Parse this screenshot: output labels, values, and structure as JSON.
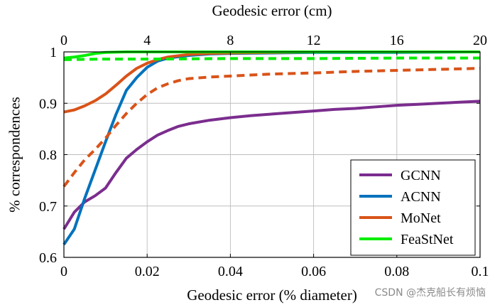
{
  "chart_data": {
    "type": "line",
    "xlabel": "Geodesic error (% diameter)",
    "x2label": "Geodesic error (cm)",
    "ylabel": "% correspondences",
    "xlim": [
      0,
      0.1
    ],
    "x2lim": [
      0,
      20
    ],
    "ylim": [
      0.6,
      1.0
    ],
    "xticks": [
      "0",
      "0.02",
      "0.04",
      "0.06",
      "0.08",
      "0.1"
    ],
    "x2ticks": [
      "0",
      "4",
      "8",
      "12",
      "16",
      "20"
    ],
    "yticks": [
      "0.6",
      "0.7",
      "0.8",
      "0.9",
      "1"
    ],
    "grid": true,
    "legend_position": "bottom-right",
    "series": [
      {
        "name": "GCNN",
        "color": "#7b2d8e",
        "dash": "solid",
        "points": [
          [
            0,
            0.655
          ],
          [
            0.0025,
            0.688
          ],
          [
            0.005,
            0.708
          ],
          [
            0.0075,
            0.72
          ],
          [
            0.01,
            0.735
          ],
          [
            0.0125,
            0.765
          ],
          [
            0.015,
            0.793
          ],
          [
            0.0175,
            0.81
          ],
          [
            0.02,
            0.825
          ],
          [
            0.0225,
            0.838
          ],
          [
            0.025,
            0.847
          ],
          [
            0.0275,
            0.855
          ],
          [
            0.03,
            0.86
          ],
          [
            0.035,
            0.867
          ],
          [
            0.04,
            0.872
          ],
          [
            0.045,
            0.876
          ],
          [
            0.05,
            0.879
          ],
          [
            0.055,
            0.882
          ],
          [
            0.06,
            0.885
          ],
          [
            0.065,
            0.888
          ],
          [
            0.07,
            0.89
          ],
          [
            0.075,
            0.893
          ],
          [
            0.08,
            0.896
          ],
          [
            0.085,
            0.898
          ],
          [
            0.09,
            0.9
          ],
          [
            0.095,
            0.902
          ],
          [
            0.1,
            0.904
          ]
        ]
      },
      {
        "name": "ACNN",
        "color": "#0072bd",
        "dash": "solid",
        "points": [
          [
            0,
            0.625
          ],
          [
            0.0025,
            0.655
          ],
          [
            0.005,
            0.715
          ],
          [
            0.0075,
            0.77
          ],
          [
            0.01,
            0.825
          ],
          [
            0.0125,
            0.878
          ],
          [
            0.015,
            0.925
          ],
          [
            0.0175,
            0.95
          ],
          [
            0.02,
            0.97
          ],
          [
            0.0225,
            0.982
          ],
          [
            0.025,
            0.988
          ],
          [
            0.03,
            0.993
          ],
          [
            0.035,
            0.996
          ],
          [
            0.04,
            0.997
          ],
          [
            0.05,
            0.998
          ],
          [
            0.06,
            0.999
          ],
          [
            0.08,
            0.999
          ],
          [
            0.1,
            1.0
          ]
        ]
      },
      {
        "name": "MoNet",
        "color": "#d95319",
        "dash": "solid",
        "points": [
          [
            0,
            0.883
          ],
          [
            0.0025,
            0.887
          ],
          [
            0.005,
            0.895
          ],
          [
            0.0075,
            0.905
          ],
          [
            0.01,
            0.918
          ],
          [
            0.0125,
            0.935
          ],
          [
            0.015,
            0.953
          ],
          [
            0.0175,
            0.968
          ],
          [
            0.02,
            0.978
          ],
          [
            0.0225,
            0.985
          ],
          [
            0.025,
            0.99
          ],
          [
            0.03,
            0.995
          ],
          [
            0.035,
            0.997
          ],
          [
            0.04,
            0.998
          ],
          [
            0.05,
            0.999
          ],
          [
            0.06,
            1.0
          ],
          [
            0.1,
            1.0
          ]
        ]
      },
      {
        "name": "",
        "color": "#d95319",
        "dash": "dashed",
        "points": [
          [
            0,
            0.738
          ],
          [
            0.0025,
            0.765
          ],
          [
            0.005,
            0.79
          ],
          [
            0.0075,
            0.81
          ],
          [
            0.01,
            0.832
          ],
          [
            0.0125,
            0.857
          ],
          [
            0.015,
            0.88
          ],
          [
            0.0175,
            0.9
          ],
          [
            0.02,
            0.917
          ],
          [
            0.0225,
            0.93
          ],
          [
            0.025,
            0.938
          ],
          [
            0.0275,
            0.944
          ],
          [
            0.03,
            0.948
          ],
          [
            0.035,
            0.951
          ],
          [
            0.04,
            0.953
          ],
          [
            0.045,
            0.955
          ],
          [
            0.05,
            0.957
          ],
          [
            0.06,
            0.959
          ],
          [
            0.07,
            0.962
          ],
          [
            0.08,
            0.964
          ],
          [
            0.09,
            0.966
          ],
          [
            0.1,
            0.968
          ]
        ]
      },
      {
        "name": "FeaStNet",
        "color": "#00ee00",
        "dash": "solid",
        "points": [
          [
            0,
            0.988
          ],
          [
            0.0025,
            0.99
          ],
          [
            0.005,
            0.993
          ],
          [
            0.0075,
            0.997
          ],
          [
            0.01,
            0.999
          ],
          [
            0.015,
            1.0
          ],
          [
            0.1,
            1.0
          ]
        ]
      },
      {
        "name": "",
        "color": "#00ee00",
        "dash": "dashed",
        "points": [
          [
            0,
            0.985
          ],
          [
            0.01,
            0.986
          ],
          [
            0.02,
            0.986
          ],
          [
            0.04,
            0.987
          ],
          [
            0.06,
            0.987
          ],
          [
            0.08,
            0.988
          ],
          [
            0.1,
            0.988
          ]
        ]
      }
    ]
  },
  "watermark": "CSDN @杰克船长有烦恼"
}
